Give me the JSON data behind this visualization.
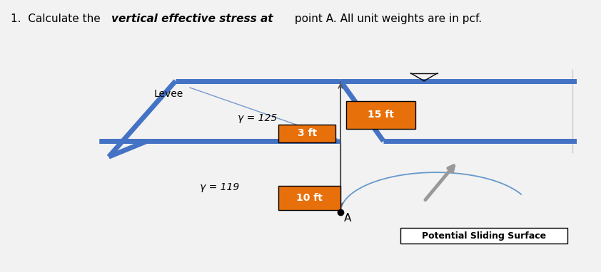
{
  "bg_color": "#e8e8e8",
  "page_bg": "#f2f2f2",
  "levee_color": "#4472C4",
  "levee_linewidth": 5,
  "orange_color": "#E8700A",
  "label_gamma125": "γ = 125",
  "label_gamma119": "γ = 119",
  "label_15ft": "15 ft",
  "label_3ft": "3 ft",
  "label_10ft": "10 ft",
  "label_levee": "Levee",
  "label_A": "A",
  "label_pss": "Potential Sliding Surface",
  "sliding_curve_color": "#6699CC",
  "sliding_arrow_color": "#999999",
  "title_prefix": "1.  Calculate the ",
  "title_bold": "vertical effective stress at",
  "title_suffix": " point A. All unit weights are in pcf."
}
